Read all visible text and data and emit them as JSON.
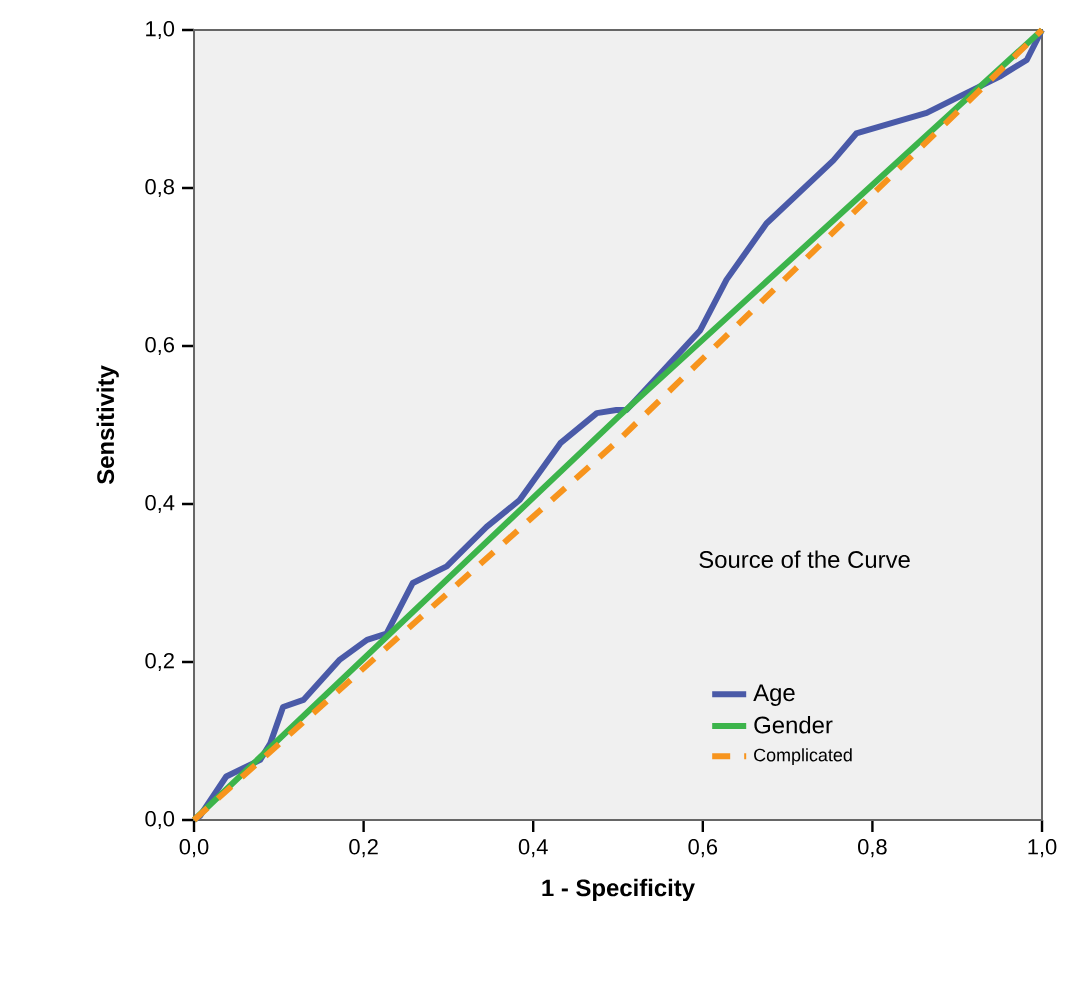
{
  "chart_data": {
    "type": "line",
    "xlabel": "1 - Specificity",
    "ylabel": "Sensitivity",
    "legend_title": "Source of the Curve",
    "legend": "bottom right",
    "grid": false,
    "xlim": [
      0,
      1
    ],
    "ylim": [
      0,
      1
    ],
    "xticks": [
      {
        "value": 0,
        "label": "0,0"
      },
      {
        "value": 0.2,
        "label": "0,2"
      },
      {
        "value": 0.4,
        "label": "0,4"
      },
      {
        "value": 0.6,
        "label": "0,6"
      },
      {
        "value": 0.8,
        "label": "0,8"
      },
      {
        "value": 1,
        "label": "1,0"
      }
    ],
    "yticks": [
      {
        "value": 0,
        "label": "0,0"
      },
      {
        "value": 0.2,
        "label": "0,2"
      },
      {
        "value": 0.4,
        "label": "0,4"
      },
      {
        "value": 0.6,
        "label": "0,6"
      },
      {
        "value": 0.8,
        "label": "0,8"
      },
      {
        "value": 1,
        "label": "1,0"
      }
    ],
    "series": [
      {
        "name": "Age",
        "color": "#4a5aa8",
        "line_style": "solid",
        "x": [
          0,
          0.007,
          0.038,
          0.078,
          0.09,
          0.105,
          0.129,
          0.172,
          0.204,
          0.227,
          0.258,
          0.298,
          0.345,
          0.384,
          0.432,
          0.475,
          0.498,
          0.51,
          0.55,
          0.597,
          0.628,
          0.675,
          0.754,
          0.781,
          0.864,
          0.903,
          0.95,
          0.982,
          1
        ],
        "values": [
          0,
          0.005,
          0.055,
          0.076,
          0.097,
          0.143,
          0.152,
          0.203,
          0.228,
          0.236,
          0.3,
          0.321,
          0.371,
          0.405,
          0.477,
          0.515,
          0.519,
          0.519,
          0.565,
          0.62,
          0.684,
          0.755,
          0.835,
          0.869,
          0.895,
          0.916,
          0.941,
          0.962,
          1
        ]
      },
      {
        "name": "Gender",
        "color": "#3cb44b",
        "line_style": "solid",
        "x": [
          0,
          0.5,
          1
        ],
        "values": [
          0,
          0.51,
          1
        ]
      },
      {
        "name": "Complicated",
        "color": "#f7941d",
        "line_style": "dashed",
        "x": [
          0,
          0.5,
          1
        ],
        "values": [
          0,
          0.48,
          1
        ]
      }
    ]
  }
}
